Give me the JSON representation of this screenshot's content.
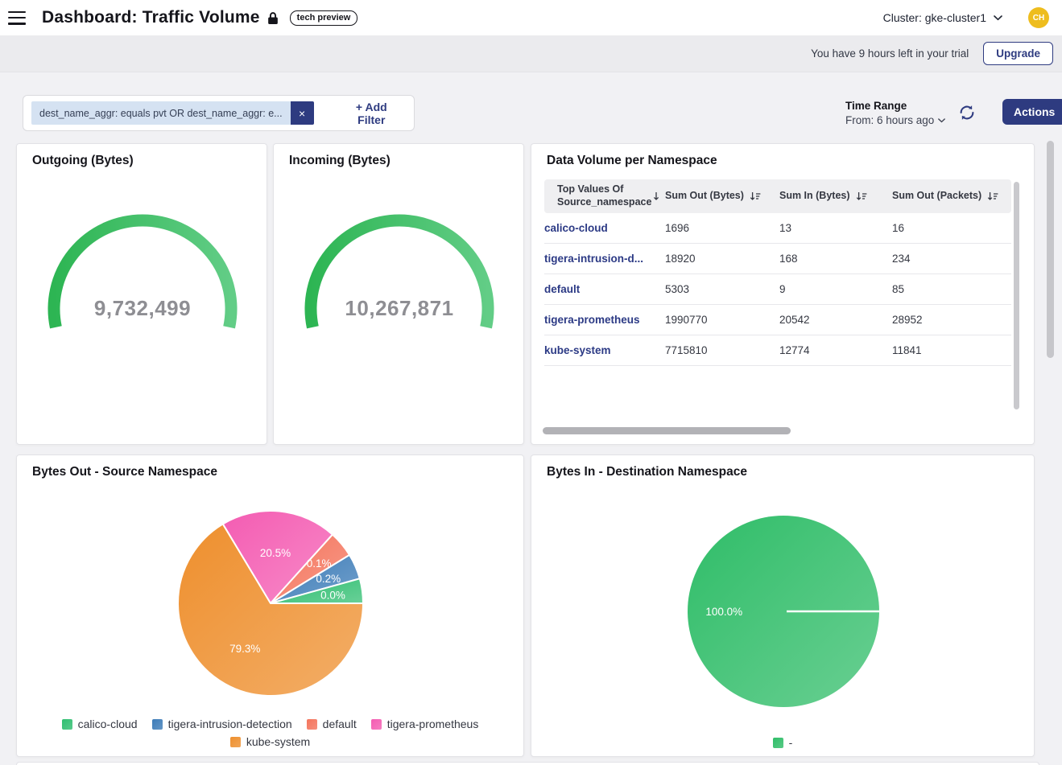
{
  "header": {
    "title": "Dashboard: Traffic Volume",
    "tech_preview_label": "tech preview",
    "cluster_selector": "Cluster: gke-cluster1",
    "avatar_initials": "CH"
  },
  "trial_banner": {
    "message": "You have 9 hours left in your trial",
    "upgrade_label": "Upgrade"
  },
  "filter_bar": {
    "filter_chip": "dest_name_aggr: equals pvt OR dest_name_aggr: e...",
    "add_filter_label": "+ Add Filter",
    "time_range_label": "Time Range",
    "time_range_value": "From: 6 hours ago",
    "actions_label": "Actions"
  },
  "icons": {
    "close": "×",
    "menu": "≡",
    "chevron_down": "⌄",
    "refresh": "⟳",
    "lock": "lock",
    "sort_arrow": "↓",
    "sort_amount": "↓≡"
  },
  "colors": {
    "navy": "#2e3b80",
    "avatar_gold": "#eebd1e",
    "green": "#2fbe70",
    "blue": "#3d7cb8",
    "salmon": "#f4745c",
    "pink": "#f45cb2",
    "orange": "#ee8f2d",
    "gauge_green_start": "#2db553",
    "gauge_green_end": "#62cd86",
    "value_gray": "#8e8e93"
  },
  "chart_data": [
    {
      "type": "gauge",
      "title": "Outgoing (Bytes)",
      "value": 9732499,
      "display_value": "9,732,499",
      "color_start": "#2db553",
      "color_end": "#62cd86"
    },
    {
      "type": "gauge",
      "title": "Incoming (Bytes)",
      "value": 10267871,
      "display_value": "10,267,871",
      "color_start": "#2db553",
      "color_end": "#62cd86"
    },
    {
      "type": "table",
      "title": "Data Volume per Namespace",
      "columns": [
        {
          "label": "Top Values Of Source_namespace",
          "sort_icon": "arrow-down"
        },
        {
          "label": "Sum Out (Bytes)",
          "sort_icon": "sort-amount-down"
        },
        {
          "label": "Sum In (Bytes)",
          "sort_icon": "sort-amount-down"
        },
        {
          "label": "Sum Out (Packets)",
          "sort_icon": "sort-amount-down"
        }
      ],
      "rows": [
        {
          "name": "calico-cloud",
          "sum_out_bytes": 1696,
          "sum_in_bytes": 13,
          "sum_out_packets": 16
        },
        {
          "name": "tigera-intrusion-d...",
          "sum_out_bytes": 18920,
          "sum_in_bytes": 168,
          "sum_out_packets": 234
        },
        {
          "name": "default",
          "sum_out_bytes": 5303,
          "sum_in_bytes": 9,
          "sum_out_packets": 85
        },
        {
          "name": "tigera-prometheus",
          "sum_out_bytes": 1990770,
          "sum_in_bytes": 20542,
          "sum_out_packets": 28952
        },
        {
          "name": "kube-system",
          "sum_out_bytes": 7715810,
          "sum_in_bytes": 12774,
          "sum_out_packets": 11841
        }
      ]
    },
    {
      "type": "pie",
      "title": "Bytes Out - Source Namespace",
      "legend_position": "bottom",
      "slices": [
        {
          "label": "tigera-prometheus",
          "pct": 20.5,
          "pct_label": "20.5%",
          "color": "#f45cb2",
          "display_deg": [
            -31,
            42
          ]
        },
        {
          "label": "default",
          "pct": 0.1,
          "pct_label": "0.1%",
          "color": "#f4745c",
          "display_deg": [
            42,
            58.5
          ]
        },
        {
          "label": "tigera-intrusion-detection",
          "pct": 0.2,
          "pct_label": "0.2%",
          "color": "#3d7cb8",
          "display_deg": [
            58.5,
            74.5
          ]
        },
        {
          "label": "calico-cloud",
          "pct": 0.0,
          "pct_label": "0.0%",
          "color": "#2fbe70",
          "display_deg": [
            74.5,
            90
          ]
        },
        {
          "label": "kube-system",
          "pct": 79.3,
          "pct_label": "79.3%",
          "color": "#ee8f2d",
          "display_deg": [
            90,
            329
          ]
        }
      ],
      "legend": [
        {
          "label": "calico-cloud",
          "color": "#2fbe70"
        },
        {
          "label": "tigera-intrusion-detection",
          "color": "#3d7cb8"
        },
        {
          "label": "default",
          "color": "#f4745c"
        },
        {
          "label": "tigera-prometheus",
          "color": "#f45cb2"
        },
        {
          "label": "kube-system",
          "color": "#ee8f2d"
        }
      ]
    },
    {
      "type": "pie",
      "title": "Bytes In - Destination Namespace",
      "legend_position": "bottom",
      "slices": [
        {
          "label": "-",
          "pct": 100.0,
          "pct_label": "100.0%",
          "color": "#2fbd68",
          "display_deg": [
            90,
            450
          ]
        }
      ],
      "legend": [
        {
          "label": "-",
          "color": "#2fbd68"
        }
      ]
    }
  ]
}
